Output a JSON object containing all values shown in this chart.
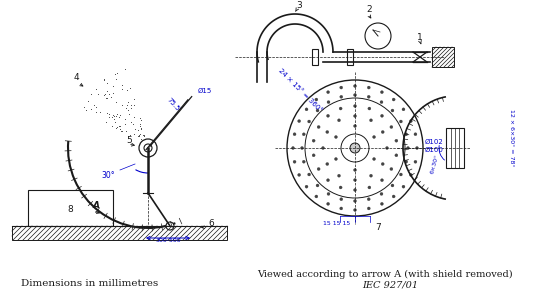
{
  "bg_color": "#ffffff",
  "line_color": "#1a1a1a",
  "dim_color": "#0000cc",
  "title1": "Dimensions in millimetres",
  "title2": "Viewed according to arrow A (with shield removed)",
  "title3": "IEC 927/01",
  "fs_title": 7.5,
  "fs_label": 6.5,
  "fs_dim": 5.5
}
